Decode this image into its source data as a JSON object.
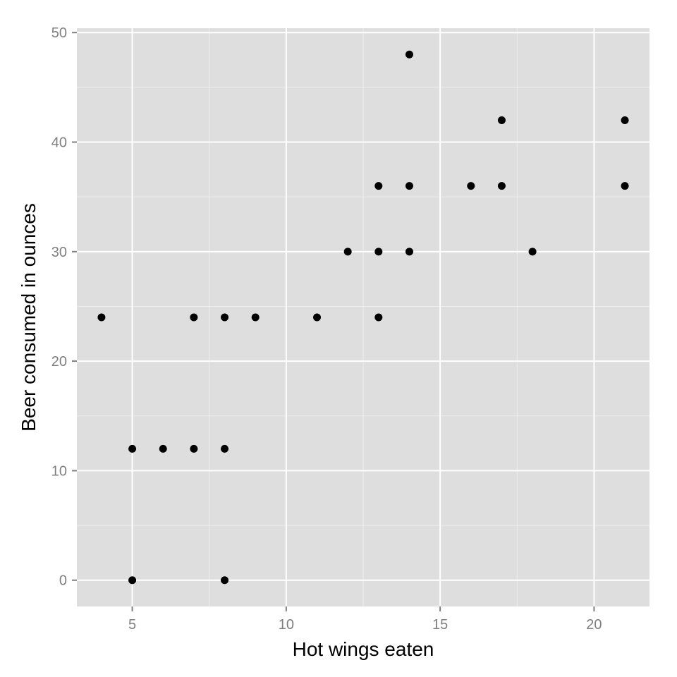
{
  "chart_data": {
    "type": "scatter",
    "xlabel": "Hot wings eaten",
    "ylabel": "Beer consumed in ounces",
    "xlim": [
      3.2,
      21.8
    ],
    "ylim": [
      -2.4,
      50.4
    ],
    "x_ticks": [
      5,
      10,
      15,
      20
    ],
    "y_ticks": [
      0,
      10,
      20,
      30,
      40,
      50
    ],
    "x_minor_ticks": [
      7.5,
      12.5,
      17.5
    ],
    "y_minor_ticks": [
      5,
      15,
      25,
      35,
      45
    ],
    "grid": true,
    "panel_color": "#dedede",
    "grid_color": "#ffffff",
    "point_color": "#000000",
    "points": [
      {
        "x": 4,
        "y": 24
      },
      {
        "x": 5,
        "y": 0
      },
      {
        "x": 5,
        "y": 12
      },
      {
        "x": 6,
        "y": 12
      },
      {
        "x": 7,
        "y": 12
      },
      {
        "x": 7,
        "y": 24
      },
      {
        "x": 8,
        "y": 0
      },
      {
        "x": 8,
        "y": 12
      },
      {
        "x": 8,
        "y": 24
      },
      {
        "x": 9,
        "y": 24
      },
      {
        "x": 11,
        "y": 24
      },
      {
        "x": 12,
        "y": 30
      },
      {
        "x": 13,
        "y": 24
      },
      {
        "x": 13,
        "y": 30
      },
      {
        "x": 13,
        "y": 36
      },
      {
        "x": 14,
        "y": 30
      },
      {
        "x": 14,
        "y": 36
      },
      {
        "x": 14,
        "y": 48
      },
      {
        "x": 16,
        "y": 36
      },
      {
        "x": 17,
        "y": 36
      },
      {
        "x": 17,
        "y": 42
      },
      {
        "x": 18,
        "y": 30
      },
      {
        "x": 21,
        "y": 36
      },
      {
        "x": 21,
        "y": 42
      }
    ]
  }
}
